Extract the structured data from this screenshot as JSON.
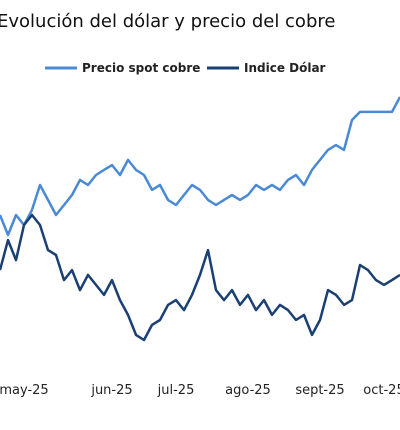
{
  "chart_data": {
    "type": "line",
    "title": "Evolución del dólar y precio del cobre",
    "categories": [
      null,
      null,
      null,
      "may-25",
      null,
      null,
      null,
      null,
      null,
      null,
      null,
      null,
      null,
      null,
      "jun-25",
      null,
      null,
      null,
      null,
      null,
      null,
      null,
      "jul-25",
      null,
      null,
      null,
      null,
      null,
      null,
      null,
      null,
      "ago-25",
      null,
      null,
      null,
      null,
      null,
      null,
      null,
      null,
      "sept-25",
      null,
      null,
      null,
      null,
      null,
      null,
      null,
      "oct-25",
      null,
      null
    ],
    "ylim": [
      0,
      100
    ],
    "series": [
      {
        "name": "Precio spot cobre",
        "color": "#4a8ad4",
        "values": [
          53.7,
          46.3,
          53.7,
          50,
          55.6,
          64.8,
          59.3,
          53.7,
          57.4,
          61.1,
          66.7,
          64.8,
          68.5,
          70.4,
          72.2,
          68.5,
          74.1,
          70.4,
          68.5,
          63,
          64.8,
          59.3,
          57.4,
          61.1,
          64.8,
          63,
          59.3,
          57.4,
          59.3,
          61.1,
          59.3,
          61.1,
          64.8,
          63,
          64.8,
          63,
          66.7,
          68.5,
          64.8,
          70.4,
          74.1,
          77.8,
          79.6,
          77.8,
          88.9,
          91.9,
          91.9,
          91.9,
          91.9,
          91.9,
          97.4
        ]
      },
      {
        "name": "Indice Dólar",
        "color": "#1a3f73",
        "values": [
          33.3,
          44.4,
          37,
          50,
          53.7,
          50,
          40.7,
          38.9,
          29.6,
          33.3,
          25.9,
          31.5,
          27.8,
          24.1,
          29.6,
          22.2,
          16.7,
          9.3,
          7.4,
          13,
          14.8,
          20.4,
          22.2,
          18.5,
          24.1,
          31.5,
          40.7,
          25.9,
          22.2,
          25.9,
          20.4,
          24.1,
          18.5,
          22.2,
          16.7,
          20.4,
          18.5,
          14.8,
          16.7,
          9.3,
          14.8,
          25.9,
          24.1,
          20.4,
          22.2,
          35.2,
          33.3,
          29.6,
          27.8,
          29.6,
          31.5
        ]
      }
    ]
  }
}
